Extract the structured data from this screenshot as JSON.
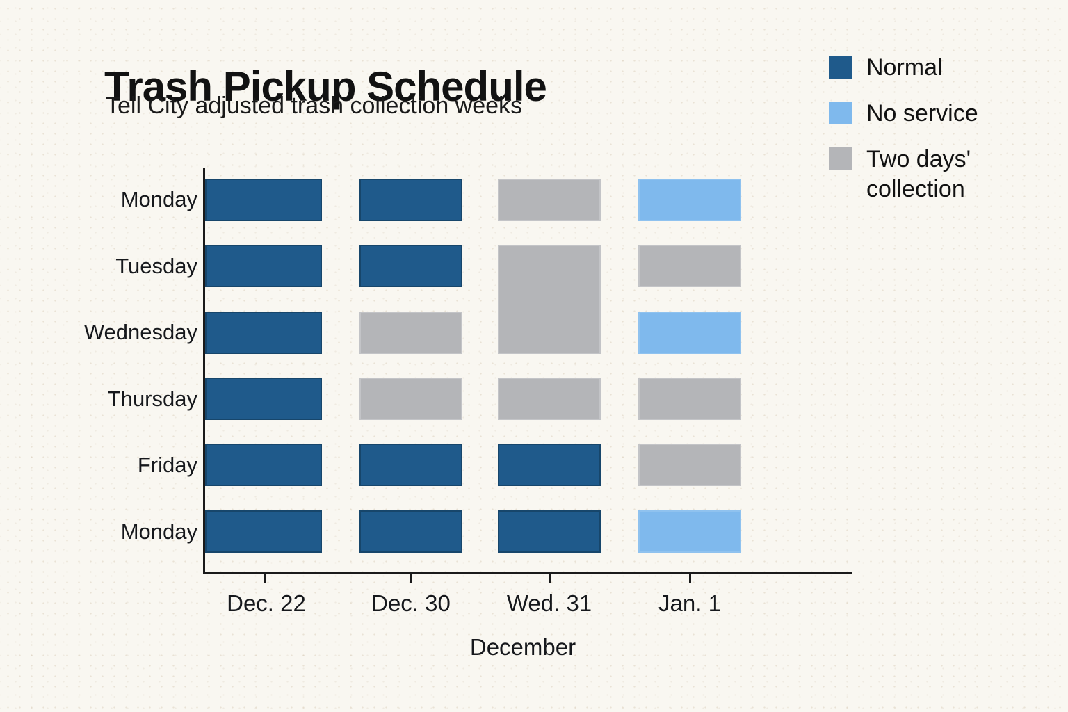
{
  "page": {
    "background": "#F9F7F1"
  },
  "header": {
    "title": "Trash Pickup Schedule",
    "subtitle": "Tell City adjusted trash collection weeks"
  },
  "legend": {
    "position": "top-right",
    "items": [
      {
        "label": "Normal",
        "status": "normal"
      },
      {
        "label": "No service",
        "status": "no-service"
      },
      {
        "label": "Two days' collection",
        "status": "two-days"
      }
    ]
  },
  "chart_data": {
    "type": "heatmap",
    "title": "Trash Pickup Schedule",
    "subtitle": "Tell City adjusted trash collection weeks",
    "xlabel": "December",
    "ylabel": "",
    "x_categories": [
      "Dec. 22",
      "Dec. 30",
      "Wed. 31",
      "Jan. 1"
    ],
    "y_categories": [
      "Monday",
      "Tuesday",
      "Wednesday",
      "Thursday",
      "Friday",
      "Monday"
    ],
    "legend_position": "top-right",
    "grid": false,
    "statuses": {
      "normal": {
        "label": "Normal",
        "color": "#1F5A8B",
        "border": "#17466B"
      },
      "no-service": {
        "label": "No service",
        "color": "#7FB9ED",
        "border": "#8FC2EF"
      },
      "two-days": {
        "label": "Two days' collection",
        "color": "#B4B5B8",
        "border": "#C3C4C7"
      }
    },
    "cells": [
      [
        "normal",
        "normal",
        "two-days",
        "no-service"
      ],
      [
        "normal",
        "normal",
        {
          "status": "two-days",
          "rowspan": 2
        },
        "two-days"
      ],
      [
        "normal",
        "two-days",
        null,
        "no-service"
      ],
      [
        "normal",
        "two-days",
        "two-days",
        "two-days"
      ],
      [
        "normal",
        "normal",
        "normal",
        "two-days"
      ],
      [
        "normal",
        "normal",
        "normal",
        "no-service"
      ]
    ],
    "merged_cells": [
      {
        "col_index": 2,
        "col": "Wed. 31",
        "row_start": "Tuesday",
        "row_end": "Wednesday",
        "status": "two-days"
      }
    ]
  }
}
